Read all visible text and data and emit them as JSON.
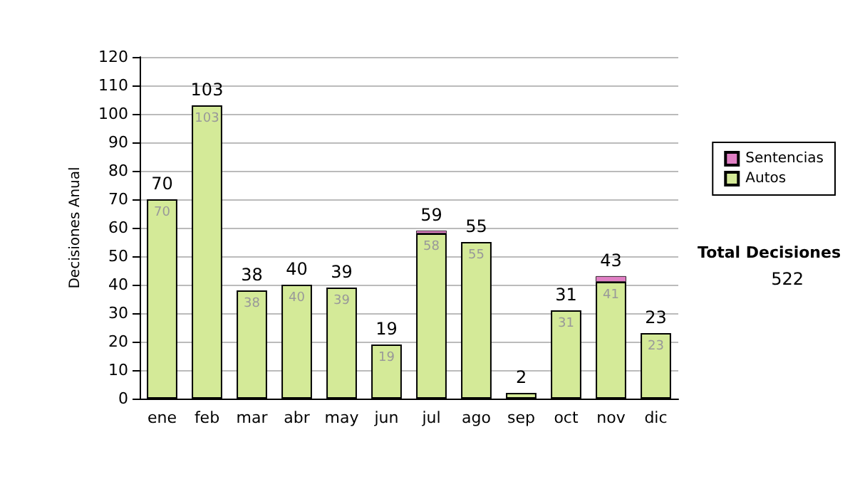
{
  "chart_data": {
    "type": "bar",
    "stacked": true,
    "ylabel": "Decisiones Anual",
    "categories": [
      "ene",
      "feb",
      "mar",
      "abr",
      "may",
      "jun",
      "jul",
      "ago",
      "sep",
      "oct",
      "nov",
      "dic"
    ],
    "series": [
      {
        "name": "Autos",
        "color": "#d4ea98",
        "values": [
          70,
          103,
          38,
          40,
          39,
          19,
          58,
          55,
          2,
          31,
          41,
          23
        ],
        "value_labels": [
          "70",
          "103",
          "38",
          "40",
          "39",
          "19",
          "58",
          "55",
          null,
          "31",
          "41",
          "23"
        ]
      },
      {
        "name": "Sentencias",
        "color": "#e07fc4",
        "values": [
          null,
          null,
          null,
          null,
          null,
          null,
          1,
          null,
          null,
          null,
          2,
          null
        ]
      }
    ],
    "totals": [
      "70",
      "103",
      "38",
      "40",
      "39",
      "19",
      "59",
      "55",
      "2",
      "31",
      "43",
      "23"
    ],
    "ylim": [
      0,
      120
    ],
    "yticks": [
      0,
      10,
      20,
      30,
      40,
      50,
      60,
      70,
      80,
      90,
      100,
      110,
      120
    ],
    "grid": "y",
    "legend": "right",
    "annotations": [
      "Total Decisiones",
      "522"
    ]
  }
}
